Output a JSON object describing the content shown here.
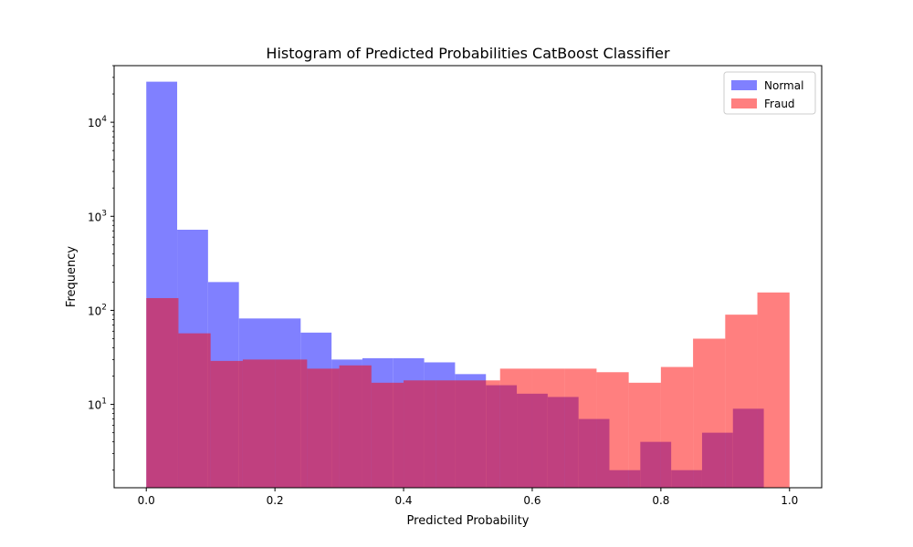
{
  "chart_data": {
    "type": "bar",
    "title": "Histogram of Predicted Probabilities CatBoost Classifier",
    "xlabel": "Predicted Probability",
    "ylabel": "Frequency",
    "xlim": [
      -0.05,
      1.05
    ],
    "ylim": [
      1.3,
      40000
    ],
    "yscale": "log",
    "grid": false,
    "legend_position": "top-right",
    "x_ticks": [
      {
        "value": 0.0,
        "label": "0.0"
      },
      {
        "value": 0.2,
        "label": "0.2"
      },
      {
        "value": 0.4,
        "label": "0.4"
      },
      {
        "value": 0.6,
        "label": "0.6"
      },
      {
        "value": 0.8,
        "label": "0.8"
      },
      {
        "value": 1.0,
        "label": "1.0"
      }
    ],
    "y_ticks": [
      {
        "value": 10,
        "base": "10",
        "exp": "1"
      },
      {
        "value": 100,
        "base": "10",
        "exp": "2"
      },
      {
        "value": 1000,
        "base": "10",
        "exp": "3"
      },
      {
        "value": 10000,
        "base": "10",
        "exp": "4"
      }
    ],
    "series": [
      {
        "name": "Normal",
        "color": "#8080ff",
        "opacity": 1.0,
        "bin_edges": [
          0.0,
          0.048,
          0.096,
          0.144,
          0.192,
          0.24,
          0.288,
          0.336,
          0.384,
          0.432,
          0.48,
          0.528,
          0.576,
          0.624,
          0.672,
          0.72,
          0.768,
          0.816,
          0.864,
          0.912,
          0.96
        ],
        "counts": [
          27000,
          720,
          200,
          82,
          82,
          58,
          30,
          31,
          31,
          28,
          21,
          16,
          13,
          12,
          7,
          2,
          4,
          2,
          5,
          9
        ]
      },
      {
        "name": "Fraud",
        "color": "#ff0000",
        "opacity": 0.5,
        "bin_edges": [
          0.0,
          0.05,
          0.1,
          0.15,
          0.2,
          0.25,
          0.3,
          0.35,
          0.4,
          0.45,
          0.5,
          0.55,
          0.6,
          0.65,
          0.7,
          0.75,
          0.8,
          0.85,
          0.9,
          0.95,
          1.0
        ],
        "counts": [
          135,
          57,
          29,
          30,
          30,
          24,
          26,
          17,
          18,
          18,
          18,
          24,
          24,
          24,
          22,
          17,
          25,
          50,
          90,
          155
        ]
      }
    ]
  }
}
